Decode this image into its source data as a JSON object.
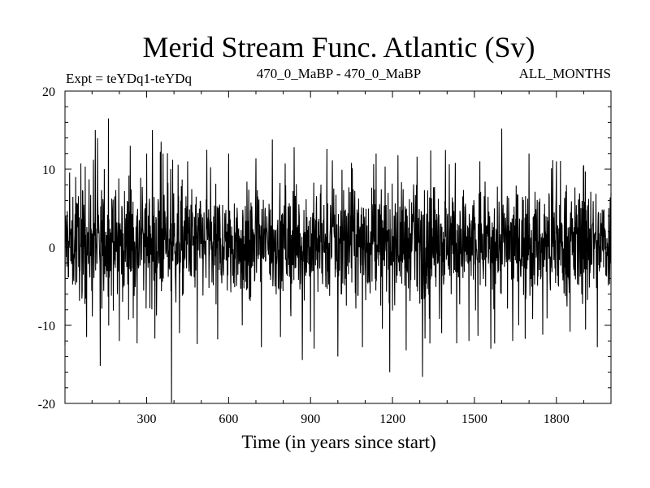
{
  "header": {
    "title": "Merid Stream Func. Atlantic (Sv)",
    "left": "Expt = teYDq1-teYDq",
    "center": "470_0_MaBP - 470_0_MaBP",
    "right": "ALL_MONTHS"
  },
  "chart_data": {
    "type": "line",
    "title": "Merid Stream Func. Atlantic (Sv)",
    "xlabel": "Time (in years since start)",
    "ylabel": "",
    "xlim": [
      1,
      2000
    ],
    "ylim": [
      -20,
      20
    ],
    "x_ticks": [
      300,
      600,
      900,
      1200,
      1500,
      1800
    ],
    "y_ticks": [
      -20,
      -10,
      0,
      10,
      20
    ],
    "grid": false,
    "legend": "none",
    "line_color": "#000000",
    "series": [
      {
        "x": [
          1,
          40,
          80,
          105,
          130,
          145,
          160,
          200,
          240,
          265,
          300,
          330,
          360,
          391,
          395,
          420,
          450,
          485,
          520,
          560,
          600,
          650,
          700,
          720,
          760,
          790,
          840,
          900,
          960,
          1000,
          1050,
          1090,
          1140,
          1190,
          1220,
          1250,
          1290,
          1310,
          1340,
          1380,
          1430,
          1480,
          1520,
          1560,
          1600,
          1640,
          1700,
          1750,
          1800,
          1850,
          1900,
          1950,
          2000
        ],
        "values": [
          -12.5,
          9,
          -11.5,
          11.2,
          -15.2,
          10,
          16.5,
          -12,
          13,
          -12.3,
          12,
          -11.7,
          12,
          -19.9,
          11.2,
          -11,
          11,
          -12.4,
          12.5,
          -11.8,
          12,
          -10,
          11.4,
          -12.8,
          13.8,
          -11.5,
          12.8,
          -10.8,
          12.6,
          -14,
          10.8,
          -12.8,
          12,
          -16,
          11.8,
          -13.2,
          11.6,
          -16.6,
          12.4,
          -11,
          10.8,
          -12,
          11,
          -13,
          15.2,
          -12,
          12,
          -11.2,
          11,
          -10.8,
          10.5,
          -12.8,
          7
        ]
      }
    ]
  }
}
